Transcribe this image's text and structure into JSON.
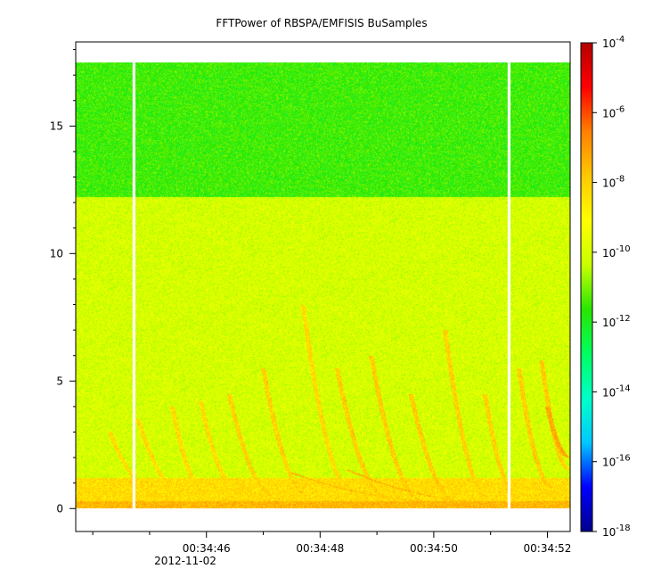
{
  "chart_data": {
    "type": "heatmap",
    "title": "FFTPower of RBSPA/EMFISIS  BuSamples",
    "xlabel": "",
    "ylabel": "",
    "x_tick_labels": [
      "00:34:46",
      "00:34:48",
      "00:34:50",
      "00:34:52"
    ],
    "x_tick_seconds": [
      46,
      48,
      50,
      52
    ],
    "x_date_label": "2012-11-02",
    "xlim_seconds": [
      43.7,
      52.4
    ],
    "y_ticks": [
      0,
      5,
      10,
      15
    ],
    "ylim": [
      -0.9,
      18.3
    ],
    "data_y_max": 17.5,
    "colorbar": {
      "scale": "log",
      "range": [
        1e-18,
        0.0001
      ],
      "tick_values": [
        0.0001,
        1e-06,
        1e-08,
        1e-10,
        1e-12,
        1e-14,
        1e-16,
        1e-18
      ],
      "tick_mantissa": "10",
      "tick_exponents": [
        "-4",
        "-6",
        "-8",
        "-10",
        "-12",
        "-14",
        "-16",
        "-18"
      ],
      "colormap": [
        "#00008c",
        "#0000ff",
        "#00c8ff",
        "#00ffc8",
        "#00ff60",
        "#28e600",
        "#c8ff00",
        "#ffff00",
        "#ffc800",
        "#ff8000",
        "#ff0000",
        "#b40000"
      ]
    },
    "gaps_seconds": [
      [
        44.7,
        44.75
      ],
      [
        51.3,
        51.35
      ]
    ],
    "background_levels": [
      {
        "freq_range": [
          0,
          0.3
        ],
        "power": 3e-08
      },
      {
        "freq_range": [
          0.3,
          1.2
        ],
        "power": 5e-09
      },
      {
        "freq_range": [
          1.2,
          12.2
        ],
        "power": 1e-10
      },
      {
        "freq_range": [
          12.2,
          17.5
        ],
        "power": 3e-12
      }
    ],
    "chorus_elements": [
      {
        "t0": 45.2,
        "f0": 0.5,
        "t1": 44.3,
        "f1": 3.0,
        "power": 5e-09
      },
      {
        "t0": 45.6,
        "f0": 0.6,
        "t1": 44.8,
        "f1": 3.5,
        "power": 5e-09
      },
      {
        "t0": 46.0,
        "f0": 0.6,
        "t1": 45.4,
        "f1": 4.0,
        "power": 5e-09
      },
      {
        "t0": 46.6,
        "f0": 0.6,
        "t1": 45.9,
        "f1": 4.2,
        "power": 5e-09
      },
      {
        "t0": 47.2,
        "f0": 0.5,
        "t1": 46.4,
        "f1": 4.5,
        "power": 8e-09
      },
      {
        "t0": 47.8,
        "f0": 0.5,
        "t1": 47.0,
        "f1": 5.5,
        "power": 8e-09
      },
      {
        "t0": 48.6,
        "f0": 0.5,
        "t1": 47.7,
        "f1": 8.0,
        "power": 5e-09
      },
      {
        "t0": 49.2,
        "f0": 0.4,
        "t1": 48.3,
        "f1": 5.5,
        "power": 1e-08
      },
      {
        "t0": 49.8,
        "f0": 0.3,
        "t1": 48.9,
        "f1": 6.0,
        "power": 1e-08
      },
      {
        "t0": 50.4,
        "f0": 0.3,
        "t1": 49.6,
        "f1": 4.5,
        "power": 1e-08
      },
      {
        "t0": 51.0,
        "f0": 0.3,
        "t1": 50.2,
        "f1": 7.0,
        "power": 8e-09
      },
      {
        "t0": 51.5,
        "f0": 0.4,
        "t1": 50.9,
        "f1": 4.5,
        "power": 8e-09
      },
      {
        "t0": 52.1,
        "f0": 0.8,
        "t1": 51.5,
        "f1": 5.5,
        "power": 1e-08
      },
      {
        "t0": 52.4,
        "f0": 1.5,
        "t1": 51.9,
        "f1": 5.8,
        "power": 1e-08
      }
    ],
    "intense_elements": [
      {
        "t0": 51.2,
        "f0": 0.2,
        "t1": 48.5,
        "f1": 1.5,
        "power": 3e-08
      },
      {
        "t0": 50.5,
        "f0": 0.2,
        "t1": 47.5,
        "f1": 1.4,
        "power": 3e-08
      },
      {
        "t0": 52.4,
        "f0": 2.0,
        "t1": 52.0,
        "f1": 4.0,
        "power": 5e-08
      }
    ]
  }
}
